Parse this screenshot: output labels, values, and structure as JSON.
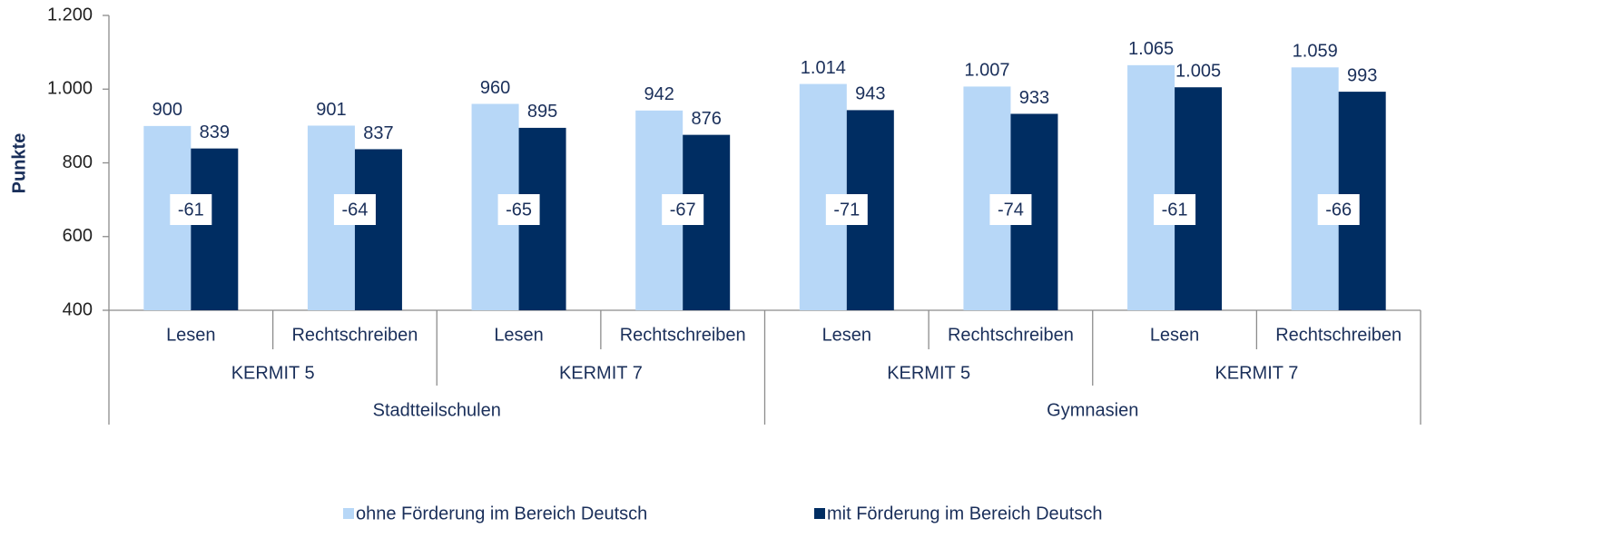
{
  "chart_data": {
    "type": "bar",
    "y_label": "Punkte",
    "categories": [
      "Lesen",
      "Rechtschreiben",
      "Lesen",
      "Rechtschreiben",
      "Lesen",
      "Rechtschreiben",
      "Lesen",
      "Rechtschreiben"
    ],
    "group_labels": [
      "KERMIT 5",
      "KERMIT 7",
      "KERMIT 5",
      "KERMIT 7"
    ],
    "supergroup_labels": [
      "Stadtteilschulen",
      "Gymnasien"
    ],
    "series": [
      {
        "name": "ohne Förderung im Bereich Deutsch",
        "color": "#b7d7f7",
        "values": [
          900,
          901,
          960,
          942,
          1014,
          1007,
          1065,
          1059
        ],
        "value_labels": [
          "900",
          "901",
          "960",
          "942",
          "1.014",
          "1.007",
          "1.065",
          "1.059"
        ]
      },
      {
        "name": "mit Förderung im Bereich Deutsch",
        "color": "#002d62",
        "values": [
          839,
          837,
          895,
          876,
          943,
          933,
          1005,
          993
        ],
        "value_labels": [
          "839",
          "837",
          "895",
          "876",
          "943",
          "933",
          "1.005",
          "993"
        ]
      }
    ],
    "differences": [
      -61,
      -64,
      -65,
      -67,
      -71,
      -74,
      -61,
      -66
    ],
    "ylim": [
      400,
      1200
    ],
    "yticks": [
      400,
      600,
      800,
      {
        "value": 1000,
        "label": "1.000"
      },
      {
        "value": 1200,
        "label": "1.200"
      }
    ],
    "grid": false
  }
}
